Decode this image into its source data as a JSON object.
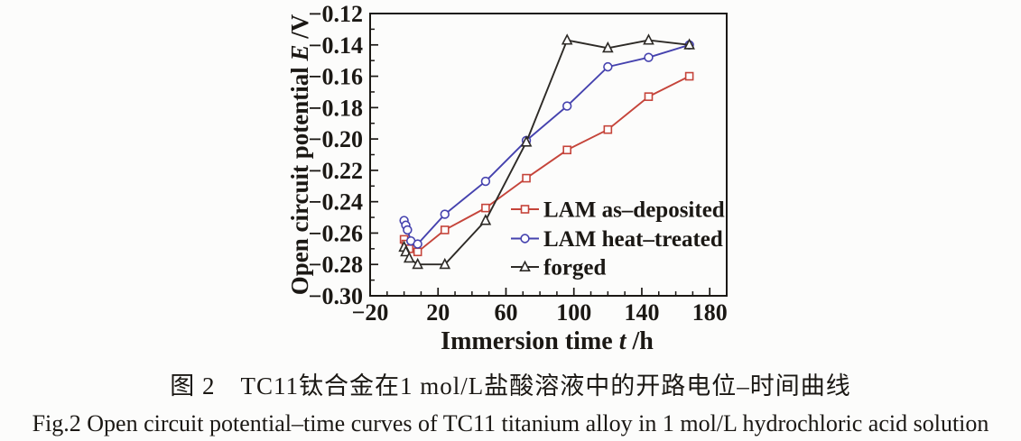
{
  "figure": {
    "caption_zh": "图 2　TC11钛合金在1 mol/L盐酸溶液中的开路电位–时间曲线",
    "caption_en": "Fig.2  Open circuit potential–time curves of TC11 titanium alloy in 1 mol/L hydrochloric acid solution"
  },
  "chart_data": {
    "type": "line",
    "title": "",
    "xlabel_parts": {
      "prefix": "Immersion time ",
      "var": "t",
      "suffix": " /h"
    },
    "ylabel_parts": {
      "prefix": "Open circuit potential ",
      "var": "E",
      "suffix": " /V"
    },
    "xlim": [
      -20,
      190
    ],
    "ylim": [
      -0.3,
      -0.12
    ],
    "x_major_ticks": {
      "values": [
        -20,
        20,
        60,
        100,
        140,
        180
      ],
      "labels": [
        "−20",
        "20",
        "60",
        "100",
        "140",
        "180"
      ]
    },
    "x_minor_step": 10,
    "y_major_ticks": {
      "values": [
        -0.12,
        -0.14,
        -0.16,
        -0.18,
        -0.2,
        -0.22,
        -0.24,
        -0.26,
        -0.28,
        -0.3
      ],
      "labels": [
        "−0.12",
        "−0.14",
        "−0.16",
        "−0.18",
        "−0.20",
        "−0.22",
        "−0.24",
        "−0.26",
        "−0.28",
        "−0.30"
      ]
    },
    "y_minor_step": 0.01,
    "grid": false,
    "axis_color": "#1b1814",
    "legend_position": "inside-middle-right",
    "series": [
      {
        "name": "LAM as–deposited",
        "color": "#c5443a",
        "marker": "square",
        "x": [
          0,
          1,
          3,
          8,
          24,
          48,
          72,
          96,
          120,
          144,
          168
        ],
        "y": [
          -0.264,
          -0.267,
          -0.27,
          -0.272,
          -0.258,
          -0.244,
          -0.225,
          -0.207,
          -0.194,
          -0.173,
          -0.16
        ]
      },
      {
        "name": "LAM heat–treated",
        "color": "#4542ae",
        "marker": "circle",
        "x": [
          0,
          1,
          2,
          4,
          8,
          24,
          48,
          72,
          96,
          120,
          144,
          168
        ],
        "y": [
          -0.252,
          -0.255,
          -0.258,
          -0.265,
          -0.267,
          -0.248,
          -0.227,
          -0.201,
          -0.179,
          -0.154,
          -0.148,
          -0.14
        ]
      },
      {
        "name": "forged",
        "color": "#2d2a26",
        "marker": "triangle",
        "x": [
          0,
          1,
          3,
          8,
          24,
          48,
          72,
          96,
          120,
          144,
          168
        ],
        "y": [
          -0.269,
          -0.272,
          -0.276,
          -0.28,
          -0.28,
          -0.252,
          -0.202,
          -0.137,
          -0.142,
          -0.137,
          -0.14
        ]
      }
    ]
  }
}
